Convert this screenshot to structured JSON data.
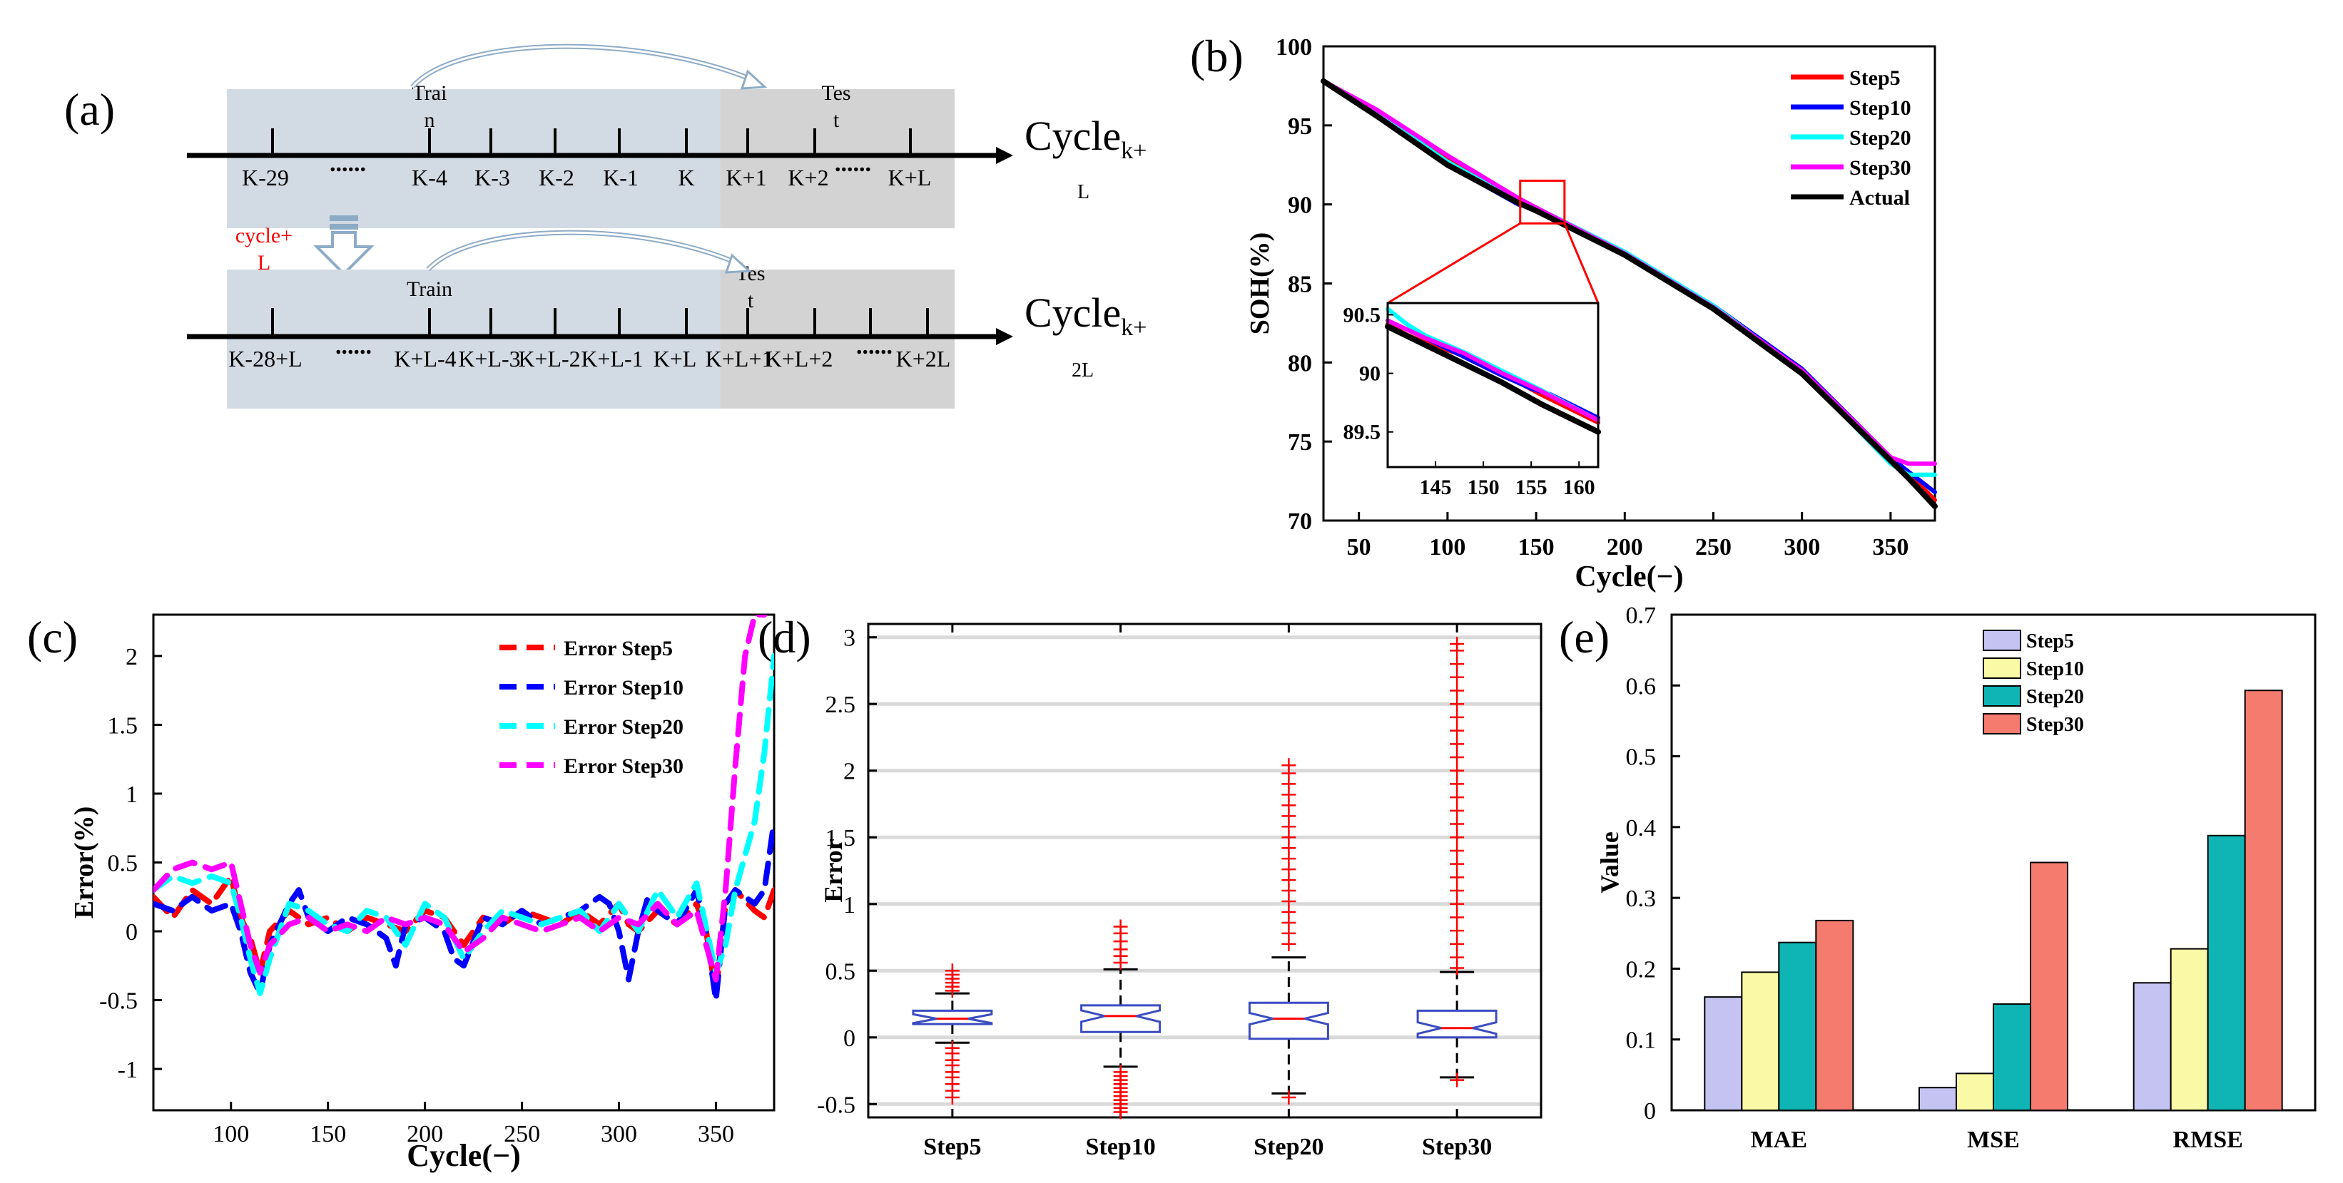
{
  "panel_labels": {
    "a": "(a)",
    "b": "(b)",
    "c": "(c)",
    "d": "(d)",
    "e": "(e)"
  },
  "panel_a": {
    "row1_ticks": [
      "K-29",
      "K-4",
      "K-3",
      "K-2",
      "K-1",
      "K",
      "K+1",
      "K+2",
      "K+L"
    ],
    "row1_train": "Trai\nn",
    "row1_test": "Tes\nt",
    "row1_axis_main": "Cycle",
    "row1_axis_sub": "k+",
    "row1_axis_tail": "L",
    "cycle_note": "cycle+\nL",
    "row2_ticks": [
      "K-28+L",
      "K+L-4",
      "K+L-3",
      "K+L-2",
      "K+L-1",
      "K+L",
      "K+L+1",
      "K+L+2",
      "K+2L"
    ],
    "row2_train": "Train",
    "row2_test": "Tes\nt",
    "row2_axis_main": "Cycle",
    "row2_axis_sub": "k+",
    "row2_axis_tail": "2L",
    "dots": "......"
  },
  "chart_data": [
    {
      "id": "b",
      "type": "line",
      "xlabel": "Cycle(−)",
      "ylabel": "SOH(%)",
      "xlim": [
        30,
        375
      ],
      "ylim": [
        70,
        100
      ],
      "xticks": [
        50,
        100,
        150,
        200,
        250,
        300,
        350
      ],
      "yticks": [
        70,
        75,
        80,
        85,
        90,
        95,
        100
      ],
      "series": [
        {
          "name": "Step5",
          "color": "#ff0000",
          "x": [
            30,
            60,
            100,
            140,
            150,
            200,
            250,
            300,
            350,
            360,
            375
          ],
          "y": [
            97.8,
            95.9,
            92.8,
            90.3,
            89.7,
            86.9,
            83.5,
            79.5,
            74.0,
            73.0,
            71.3
          ]
        },
        {
          "name": "Step10",
          "color": "#0000ff",
          "x": [
            30,
            60,
            100,
            140,
            150,
            200,
            250,
            300,
            350,
            360,
            375
          ],
          "y": [
            97.8,
            95.6,
            92.5,
            90.0,
            89.7,
            86.9,
            83.6,
            79.6,
            74.0,
            73.1,
            71.8
          ]
        },
        {
          "name": "Step20",
          "color": "#00ffff",
          "x": [
            30,
            60,
            100,
            140,
            150,
            200,
            250,
            300,
            350,
            360,
            375
          ],
          "y": [
            97.8,
            95.8,
            92.7,
            90.2,
            89.8,
            87.0,
            83.6,
            79.4,
            73.6,
            72.9,
            72.9
          ]
        },
        {
          "name": "Step30",
          "color": "#ff00ff",
          "x": [
            30,
            60,
            100,
            140,
            150,
            200,
            250,
            300,
            350,
            360,
            375
          ],
          "y": [
            97.8,
            96.0,
            93.1,
            90.4,
            89.8,
            86.9,
            83.5,
            79.5,
            74.0,
            73.6,
            73.6
          ]
        },
        {
          "name": "Actual",
          "color": "#000000",
          "x": [
            30,
            60,
            100,
            140,
            150,
            200,
            250,
            300,
            350,
            360,
            375
          ],
          "y": [
            97.8,
            95.6,
            92.5,
            90.1,
            89.6,
            86.8,
            83.4,
            79.3,
            73.8,
            72.7,
            70.9
          ]
        }
      ],
      "inset": {
        "xlim": [
          140,
          162
        ],
        "ylim": [
          89.2,
          90.6
        ],
        "xticks": [
          145,
          150,
          155,
          160
        ],
        "yticks": [
          89.5,
          90,
          90.5
        ],
        "series": [
          {
            "name": "Step5",
            "color": "#ff0000",
            "x": [
              140,
              142,
              144,
              148,
              152,
              156,
              162
            ],
            "y": [
              90.42,
              90.33,
              90.26,
              90.15,
              90.0,
              89.82,
              89.58
            ]
          },
          {
            "name": "Step10",
            "color": "#0000ff",
            "x": [
              140,
              144,
              148,
              152,
              155,
              157,
              162
            ],
            "y": [
              90.45,
              90.3,
              90.14,
              89.98,
              89.87,
              89.82,
              89.62
            ]
          },
          {
            "name": "Step20",
            "color": "#00ffff",
            "x": [
              140,
              142,
              144,
              148,
              152,
              156,
              162
            ],
            "y": [
              90.55,
              90.42,
              90.32,
              90.18,
              90.02,
              89.86,
              89.6
            ]
          },
          {
            "name": "Step30",
            "color": "#ff00ff",
            "x": [
              140,
              144,
              148,
              152,
              156,
              162
            ],
            "y": [
              90.45,
              90.3,
              90.17,
              90.0,
              89.85,
              89.6
            ]
          },
          {
            "name": "Actual",
            "color": "#000000",
            "x": [
              140,
              144,
              148,
              152,
              156,
              162
            ],
            "y": [
              90.4,
              90.24,
              90.08,
              89.92,
              89.74,
              89.5
            ]
          }
        ]
      }
    },
    {
      "id": "c",
      "type": "line",
      "xlabel": "Cycle(−)",
      "ylabel": "Error(%)",
      "xlim": [
        60,
        380
      ],
      "ylim": [
        -1.3,
        2.3
      ],
      "xticks": [
        100,
        150,
        200,
        250,
        300,
        350
      ],
      "yticks": [
        -1,
        -0.5,
        0,
        0.5,
        1,
        1.5,
        2
      ],
      "series": [
        {
          "name": "Error Step5",
          "color": "#ff0000",
          "x": [
            60,
            70,
            80,
            90,
            100,
            105,
            110,
            115,
            120,
            130,
            140,
            150,
            160,
            170,
            180,
            190,
            200,
            210,
            220,
            230,
            240,
            250,
            260,
            270,
            280,
            290,
            300,
            305,
            310,
            320,
            330,
            340,
            345,
            350,
            355,
            360,
            370,
            375,
            380
          ],
          "y": [
            0.25,
            0.1,
            0.3,
            0.2,
            0.4,
            0.1,
            -0.05,
            -0.3,
            0.0,
            0.15,
            0.05,
            0.1,
            0.0,
            0.1,
            0.05,
            0.0,
            0.15,
            0.1,
            -0.1,
            0.1,
            0.05,
            0.15,
            0.1,
            0.05,
            0.15,
            0.05,
            0.2,
            0.05,
            0.0,
            0.15,
            0.05,
            0.2,
            0.0,
            -0.45,
            0.2,
            0.3,
            0.15,
            0.1,
            0.3
          ]
        },
        {
          "name": "Error Step10",
          "color": "#0000ff",
          "x": [
            60,
            70,
            80,
            90,
            100,
            105,
            110,
            115,
            120,
            130,
            135,
            140,
            150,
            160,
            170,
            180,
            185,
            190,
            200,
            210,
            215,
            220,
            230,
            240,
            250,
            260,
            270,
            280,
            290,
            295,
            300,
            305,
            310,
            315,
            320,
            330,
            340,
            345,
            350,
            355,
            360,
            370,
            375,
            380
          ],
          "y": [
            0.2,
            0.15,
            0.25,
            0.15,
            0.2,
            0.0,
            -0.3,
            -0.45,
            -0.1,
            0.2,
            0.3,
            0.1,
            0.0,
            0.1,
            0.05,
            -0.05,
            -0.25,
            0.05,
            0.1,
            0.0,
            -0.2,
            -0.25,
            0.1,
            0.05,
            0.15,
            0.05,
            0.1,
            0.15,
            0.25,
            0.2,
            0.0,
            -0.35,
            0.0,
            0.25,
            0.15,
            0.05,
            0.3,
            0.0,
            -0.5,
            0.2,
            0.3,
            0.2,
            0.3,
            0.8
          ]
        },
        {
          "name": "Error Step20",
          "color": "#00ffff",
          "x": [
            60,
            70,
            80,
            90,
            100,
            105,
            110,
            115,
            120,
            130,
            140,
            150,
            160,
            170,
            180,
            190,
            200,
            210,
            220,
            230,
            240,
            250,
            260,
            270,
            280,
            290,
            300,
            310,
            320,
            330,
            340,
            350,
            355,
            360,
            370,
            375,
            380
          ],
          "y": [
            0.3,
            0.4,
            0.35,
            0.4,
            0.35,
            0.1,
            -0.2,
            -0.45,
            -0.2,
            0.2,
            0.15,
            0.05,
            0.0,
            0.15,
            0.1,
            -0.1,
            0.2,
            0.1,
            -0.2,
            0.0,
            0.15,
            0.1,
            0.05,
            0.1,
            0.15,
            0.0,
            0.2,
            0.0,
            0.3,
            0.1,
            0.35,
            -0.3,
            -0.1,
            0.3,
            0.8,
            1.3,
            2.0
          ]
        },
        {
          "name": "Error Step30",
          "color": "#ff00ff",
          "x": [
            60,
            70,
            80,
            90,
            100,
            105,
            110,
            115,
            120,
            130,
            140,
            150,
            160,
            170,
            180,
            190,
            200,
            210,
            220,
            230,
            240,
            250,
            260,
            270,
            280,
            290,
            300,
            310,
            320,
            330,
            340,
            350,
            355,
            360,
            365,
            370,
            375
          ],
          "y": [
            0.3,
            0.45,
            0.5,
            0.45,
            0.5,
            0.2,
            -0.1,
            -0.3,
            -0.1,
            0.05,
            0.1,
            0.0,
            0.05,
            0.0,
            0.1,
            0.05,
            0.1,
            0.05,
            -0.15,
            -0.05,
            0.1,
            0.05,
            0.0,
            0.05,
            0.1,
            0.0,
            0.1,
            0.05,
            0.2,
            0.05,
            0.15,
            -0.35,
            0.3,
            1.2,
            2.0,
            2.3,
            2.3
          ]
        }
      ]
    },
    {
      "id": "d",
      "type": "box",
      "xlabel": "",
      "ylabel": "Error",
      "categories": [
        "Step5",
        "Step10",
        "Step20",
        "Step30"
      ],
      "ylim": [
        -0.6,
        3.1
      ],
      "yticks": [
        -0.5,
        0,
        0.5,
        1,
        1.5,
        2,
        2.5,
        3
      ],
      "boxes": [
        {
          "q1": 0.1,
          "median": 0.14,
          "q3": 0.2,
          "whisker_low": -0.04,
          "whisker_high": 0.33,
          "outliers": [
            0.35,
            0.38,
            0.41,
            0.44,
            0.47,
            0.5,
            -0.08,
            -0.12,
            -0.17,
            -0.21,
            -0.26,
            -0.3,
            -0.35,
            -0.4,
            -0.45
          ]
        },
        {
          "q1": 0.04,
          "median": 0.16,
          "q3": 0.24,
          "whisker_low": -0.22,
          "whisker_high": 0.51,
          "outliers": [
            0.56,
            0.61,
            0.66,
            0.72,
            0.78,
            0.83,
            -0.26,
            -0.29,
            -0.32,
            -0.35,
            -0.38,
            -0.41,
            -0.44,
            -0.47,
            -0.5,
            -0.53,
            -0.56
          ]
        },
        {
          "q1": -0.01,
          "median": 0.14,
          "q3": 0.26,
          "whisker_low": -0.42,
          "whisker_high": 0.6,
          "outliers": [
            0.7,
            0.78,
            0.86,
            0.94,
            1.02,
            1.1,
            1.18,
            1.26,
            1.34,
            1.42,
            1.5,
            1.58,
            1.66,
            1.74,
            1.82,
            1.9,
            1.98,
            2.04,
            -0.45
          ]
        },
        {
          "q1": 0.0,
          "median": 0.07,
          "q3": 0.2,
          "whisker_low": -0.3,
          "whisker_high": 0.49,
          "outliers": [
            0.52,
            0.6,
            0.7,
            0.8,
            0.9,
            1.0,
            1.1,
            1.2,
            1.3,
            1.4,
            1.5,
            1.6,
            1.7,
            1.8,
            1.9,
            2.0,
            2.1,
            2.2,
            2.3,
            2.4,
            2.5,
            2.6,
            2.7,
            2.8,
            2.9,
            2.95,
            -0.32
          ]
        }
      ]
    },
    {
      "id": "e",
      "type": "bar",
      "xlabel": "",
      "ylabel": "Value",
      "categories": [
        "MAE",
        "MSE",
        "RMSE"
      ],
      "ylim": [
        0,
        0.7
      ],
      "yticks": [
        0,
        0.1,
        0.2,
        0.3,
        0.4,
        0.5,
        0.6,
        0.7
      ],
      "series": [
        {
          "name": "Step5",
          "color": "#c5c3f2",
          "values": [
            0.16,
            0.032,
            0.18
          ]
        },
        {
          "name": "Step10",
          "color": "#fafaa6",
          "values": [
            0.195,
            0.052,
            0.228
          ]
        },
        {
          "name": "Step20",
          "color": "#0fb5b5",
          "values": [
            0.237,
            0.15,
            0.388
          ]
        },
        {
          "name": "Step30",
          "color": "#f47b6e",
          "values": [
            0.268,
            0.35,
            0.593
          ]
        }
      ]
    }
  ]
}
